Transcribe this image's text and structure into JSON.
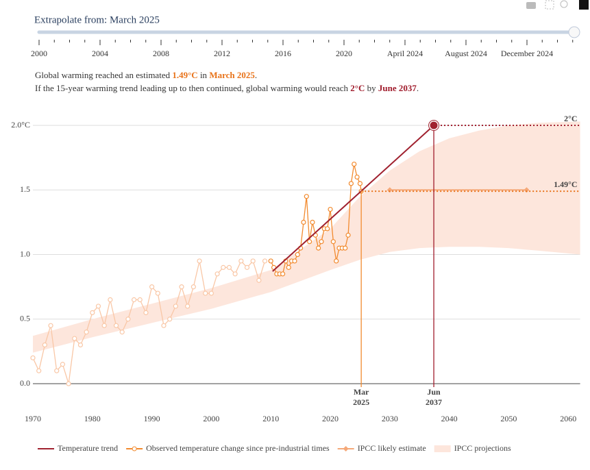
{
  "slider": {
    "label": "Extrapolate from: March 2025",
    "ticks": [
      "2000",
      "2004",
      "2008",
      "2012",
      "2016",
      "2020",
      "April 2024",
      "August 2024",
      "December 2024"
    ]
  },
  "summary": [
    {
      "color": "#e8731a",
      "parts": [
        "Global warming reached an estimated ",
        "1.49°C",
        " in ",
        "March 2025",
        "."
      ]
    },
    {
      "color": "#a01c2c",
      "parts": [
        "If the 15-year warming trend leading up to then continued, global warming would reach ",
        "2°C",
        " by ",
        "June 2037",
        "."
      ]
    }
  ],
  "chart_data": {
    "type": "line",
    "xlim": [
      1970,
      2062
    ],
    "ylim": [
      -0.22,
      2.12
    ],
    "xticks": [
      1970,
      1980,
      1990,
      2000,
      2010,
      2020,
      2030,
      2040,
      2050,
      2060
    ],
    "yticks": [
      {
        "value": 0,
        "label": "0.0"
      },
      0.5,
      {
        "value": 1,
        "label": "1.0"
      },
      1.5,
      {
        "value": 2,
        "label": "2.0°C"
      }
    ],
    "grid": true,
    "series": [
      {
        "name": "Temperature trend",
        "color": "#a0212f",
        "style": "trend",
        "x": [
          2010.3,
          2037.4
        ],
        "values": [
          0.87,
          2.0
        ]
      },
      {
        "color": "#f9c7a6",
        "style": "markers+line",
        "x": [
          1970,
          1971,
          1972,
          1973,
          1974,
          1975,
          1976,
          1977,
          1978,
          1979,
          1980,
          1981,
          1982,
          1983,
          1984,
          1985,
          1986,
          1987,
          1988,
          1989,
          1990,
          1991,
          1992,
          1993,
          1994,
          1995,
          1996,
          1997,
          1998,
          1999,
          2000,
          2001,
          2002,
          2003,
          2004,
          2005,
          2006,
          2007,
          2008,
          2009
        ],
        "values": [
          0.2,
          0.1,
          0.3,
          0.45,
          0.1,
          0.15,
          0.0,
          0.35,
          0.3,
          0.4,
          0.55,
          0.6,
          0.45,
          0.65,
          0.45,
          0.4,
          0.5,
          0.65,
          0.65,
          0.55,
          0.75,
          0.7,
          0.45,
          0.5,
          0.6,
          0.75,
          0.6,
          0.75,
          0.95,
          0.7,
          0.7,
          0.85,
          0.9,
          0.9,
          0.85,
          0.95,
          0.9,
          0.95,
          0.8,
          0.95
        ]
      },
      {
        "name": "Observed temperature change since pre-industrial times",
        "color": "#f28a2e",
        "style": "markers+line",
        "x": [
          2010,
          2010.5,
          2011,
          2011.5,
          2012,
          2012.5,
          2013,
          2013.5,
          2014,
          2014.5,
          2015,
          2015.5,
          2016,
          2016.5,
          2017,
          2017.5,
          2018,
          2018.5,
          2019,
          2019.5,
          2020,
          2020.5,
          2021,
          2021.5,
          2022,
          2022.5,
          2023,
          2023.5,
          2024,
          2024.5,
          2025,
          2025.2
        ],
        "values": [
          0.95,
          0.9,
          0.85,
          0.85,
          0.85,
          0.95,
          0.9,
          0.95,
          0.95,
          1.0,
          1.05,
          1.25,
          1.45,
          1.1,
          1.25,
          1.15,
          1.05,
          1.1,
          1.2,
          1.2,
          1.35,
          1.1,
          0.95,
          1.05,
          1.05,
          1.05,
          1.15,
          1.55,
          1.7,
          1.6,
          1.55,
          1.49
        ]
      },
      {
        "name": "IPCC likely estimate",
        "color": "#f5a878",
        "style": "diamonds",
        "x": [
          2030,
          2053
        ],
        "values": [
          1.5,
          1.5
        ]
      },
      {
        "name": "IPCC projections",
        "color": "#fde6dc",
        "style": "band",
        "x": [
          1970,
          1980,
          1990,
          2000,
          2010,
          2020,
          2025,
          2030,
          2035,
          2040,
          2045,
          2050,
          2055,
          2062
        ],
        "lower": [
          0.24,
          0.36,
          0.47,
          0.58,
          0.71,
          0.88,
          0.96,
          1.02,
          1.05,
          1.06,
          1.06,
          1.05,
          1.03,
          1.0
        ],
        "upper": [
          0.37,
          0.5,
          0.62,
          0.74,
          0.88,
          1.2,
          1.45,
          1.65,
          1.8,
          1.9,
          1.96,
          2.0,
          2.02,
          2.03
        ]
      }
    ],
    "thresholds": [
      {
        "value": 1.49,
        "label": "1.49°C",
        "color": "#e8731a",
        "from": 2025.2
      },
      {
        "value": 2,
        "label": "2°C",
        "color": "#a01c2c",
        "from": 2037.4
      }
    ],
    "markers": [
      {
        "x": 2025.2,
        "value": 1.49,
        "label": [
          "Mar",
          "2025"
        ],
        "color": "#f28a2e"
      },
      {
        "x": 2037.4,
        "value": 2,
        "label": [
          "Jun",
          "2037"
        ],
        "color": "#a01c2c"
      }
    ]
  }
}
